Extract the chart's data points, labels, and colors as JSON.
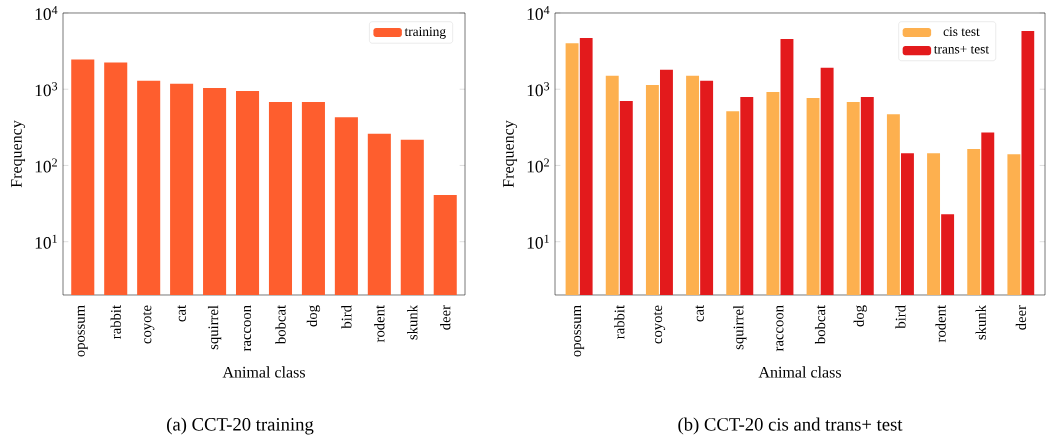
{
  "chart_data": [
    {
      "type": "bar",
      "categories": [
        "opossum",
        "rabbit",
        "coyote",
        "cat",
        "squirrel",
        "raccoon",
        "bobcat",
        "dog",
        "bird",
        "rodent",
        "skunk",
        "deer"
      ],
      "xlabel": "Animal class",
      "ylabel": "Frequency",
      "log": true,
      "ylim": [
        2,
        10000
      ],
      "yticks": [
        {
          "value": 10,
          "label": "10$^{1}$"
        },
        {
          "value": 100,
          "label": "10$^{2}$"
        },
        {
          "value": 1000,
          "label": "10$^{3}$"
        },
        {
          "value": 10000,
          "label": "10$^{4}$"
        }
      ],
      "legend": "top right",
      "grid": false,
      "series": [
        {
          "name": "training",
          "color": "#fe5e2e",
          "values": [
            2450,
            2240,
            1290,
            1180,
            1040,
            950,
            680,
            680,
            430,
            260,
            218,
            41
          ]
        }
      ],
      "annotations": [
        "(a) CCT-20 training"
      ]
    },
    {
      "type": "bar",
      "categories": [
        "opossum",
        "rabbit",
        "coyote",
        "cat",
        "squirrel",
        "raccoon",
        "bobcat",
        "dog",
        "bird",
        "rodent",
        "skunk",
        "deer"
      ],
      "xlabel": "Animal class",
      "ylabel": "Frequency",
      "log": true,
      "ylim": [
        2,
        10000
      ],
      "yticks": [
        {
          "value": 10,
          "label": "10$^{1}$"
        },
        {
          "value": 100,
          "label": "10$^{2}$"
        },
        {
          "value": 1000,
          "label": "10$^{3}$"
        },
        {
          "value": 10000,
          "label": "10$^{4}$"
        }
      ],
      "legend": "top right",
      "grid": false,
      "series": [
        {
          "name": "cis test",
          "color": "#fdb04f",
          "values": [
            4000,
            1500,
            1140,
            1500,
            515,
            920,
            770,
            680,
            470,
            145,
            165,
            140
          ]
        },
        {
          "name": "trans+ test",
          "color": "#e31a1c",
          "values": [
            4700,
            700,
            1800,
            1290,
            790,
            4550,
            1920,
            790,
            145,
            23,
            270,
            5800
          ]
        }
      ],
      "annotations": [
        "(b) CCT-20 cis and trans+ test"
      ]
    }
  ]
}
